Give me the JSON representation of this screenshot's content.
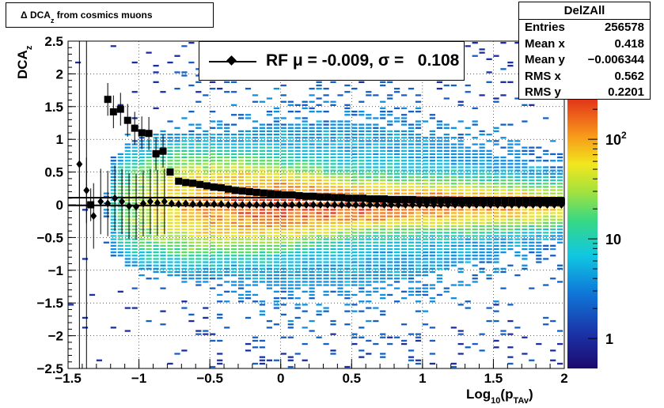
{
  "title": {
    "main": "Δ DCA",
    "sub": "z",
    "rest": " from cosmics muons"
  },
  "stats": {
    "name": "DelZAll",
    "rows": [
      {
        "key": "Entries",
        "value": "256578"
      },
      {
        "key": "Mean x",
        "value": "0.418"
      },
      {
        "key": "Mean y",
        "value": "−0.006344"
      },
      {
        "key": "RMS x",
        "value": "0.562"
      },
      {
        "key": "RMS y",
        "value": "0.2201"
      }
    ]
  },
  "legend": {
    "text": "RF μ = -0.009, σ =   0.108"
  },
  "axes": {
    "xlabel_main": "Log",
    "xlabel_sub1": "10",
    "xlabel_mid": "(p",
    "xlabel_sub2": "TAv",
    "xlabel_end": ")",
    "ylabel_main": "DCA",
    "ylabel_sub": "z"
  },
  "colors": {
    "marker": "#000000",
    "frame": "#000000"
  },
  "chart_data": {
    "type": "heatmap",
    "xlim": [
      -1.5,
      2.0
    ],
    "ylim": [
      -2.5,
      2.5
    ],
    "x_ticks": [
      "−1.5",
      "−1",
      "−0.5",
      "0",
      "0.5",
      "1",
      "1.5",
      "2"
    ],
    "y_ticks": [
      "−2.5",
      "−2",
      "−1.5",
      "−1",
      "−0.5",
      "0",
      "0.5",
      "1",
      "1.5",
      "2",
      "2.5"
    ],
    "grid": true,
    "z_scale": "log",
    "colorbar_ticks": [
      "1",
      "10",
      "10²"
    ],
    "colorbar_tick_values": [
      1,
      10,
      100
    ],
    "colorbar_range": [
      0.5,
      250
    ],
    "series": [
      {
        "marker": "square",
        "x": [
          -1.34,
          -1.22,
          -1.18,
          -1.13,
          -1.08,
          -1.03,
          -0.98,
          -0.93,
          -0.88,
          -0.83,
          -0.78,
          -0.72,
          -0.67,
          -0.62,
          -0.57,
          -0.52,
          -0.47,
          -0.42,
          -0.37,
          -0.32,
          -0.27,
          -0.22,
          -0.17,
          -0.12,
          -0.07,
          -0.02,
          0.03,
          0.08,
          0.13,
          0.18,
          0.23,
          0.28,
          0.33,
          0.38,
          0.43,
          0.48,
          0.53,
          0.58,
          0.63,
          0.68,
          0.73,
          0.78,
          0.83,
          0.88,
          0.93,
          0.98,
          1.03,
          1.08,
          1.13,
          1.18,
          1.23,
          1.28,
          1.33,
          1.38,
          1.43,
          1.48,
          1.53,
          1.58,
          1.63,
          1.68,
          1.73,
          1.78,
          1.83,
          1.88,
          1.93,
          1.98
        ],
        "y": [
          0.0,
          1.61,
          1.42,
          1.46,
          1.29,
          1.17,
          1.1,
          1.09,
          0.78,
          0.82,
          0.5,
          0.36,
          0.34,
          0.33,
          0.31,
          0.29,
          0.27,
          0.26,
          0.24,
          0.22,
          0.21,
          0.2,
          0.19,
          0.18,
          0.17,
          0.16,
          0.15,
          0.15,
          0.14,
          0.13,
          0.13,
          0.12,
          0.12,
          0.11,
          0.11,
          0.1,
          0.1,
          0.1,
          0.09,
          0.09,
          0.09,
          0.08,
          0.08,
          0.08,
          0.08,
          0.07,
          0.07,
          0.07,
          0.07,
          0.07,
          0.06,
          0.06,
          0.06,
          0.06,
          0.06,
          0.06,
          0.06,
          0.06,
          0.05,
          0.05,
          0.05,
          0.05,
          0.05,
          0.05,
          0.05,
          0.05
        ]
      },
      {
        "marker": "diamond",
        "x": [
          -1.42,
          -1.37,
          -1.32,
          -1.27,
          -1.22,
          -1.17,
          -1.12,
          -1.07,
          -1.02,
          -0.97,
          -0.92,
          -0.87,
          -0.82,
          -0.77,
          -0.72,
          -0.67,
          -0.62,
          -0.57,
          -0.52,
          -0.47,
          -0.42,
          -0.37,
          -0.32,
          -0.27,
          -0.22,
          -0.17,
          -0.12,
          -0.07,
          -0.02,
          0.03,
          0.08,
          0.13,
          0.18,
          0.23,
          0.28,
          0.33,
          0.38,
          0.43,
          0.48,
          0.53,
          0.58,
          0.63,
          0.68,
          0.73,
          0.78,
          0.83,
          0.88,
          0.93,
          0.98,
          1.03,
          1.08,
          1.13,
          1.18,
          1.23,
          1.28,
          1.33,
          1.38,
          1.43,
          1.48,
          1.53,
          1.58,
          1.63,
          1.68,
          1.73,
          1.78,
          1.83,
          1.88,
          1.93,
          1.98
        ],
        "y": [
          0.62,
          0.22,
          -0.17,
          0.05,
          0.02,
          0.1,
          0.05,
          -0.02,
          -0.03,
          0.02,
          0.05,
          0.03,
          0.05,
          0.02,
          0.01,
          0.02,
          0.01,
          0.01,
          0.01,
          0.01,
          0.01,
          0.0,
          0.0,
          0.0,
          0.0,
          0.0,
          0.0,
          0.0,
          0.0,
          0.0,
          0.0,
          0.0,
          0.0,
          0.0,
          0.0,
          0.0,
          0.0,
          0.0,
          0.0,
          0.0,
          0.0,
          0.0,
          0.0,
          0.0,
          0.0,
          0.0,
          0.0,
          0.0,
          0.0,
          0.0,
          0.0,
          0.0,
          0.0,
          0.0,
          0.0,
          0.0,
          0.0,
          0.0,
          0.0,
          0.0,
          0.0,
          0.0,
          0.0,
          0.0,
          0.0,
          0.0,
          0.0,
          0.0,
          0.0
        ]
      }
    ],
    "fit_lines": [
      {
        "y": 0.108,
        "x_range": [
          -1.5,
          2.0
        ]
      },
      {
        "y": -0.009,
        "x_range": [
          -1.5,
          2.0
        ]
      }
    ]
  }
}
